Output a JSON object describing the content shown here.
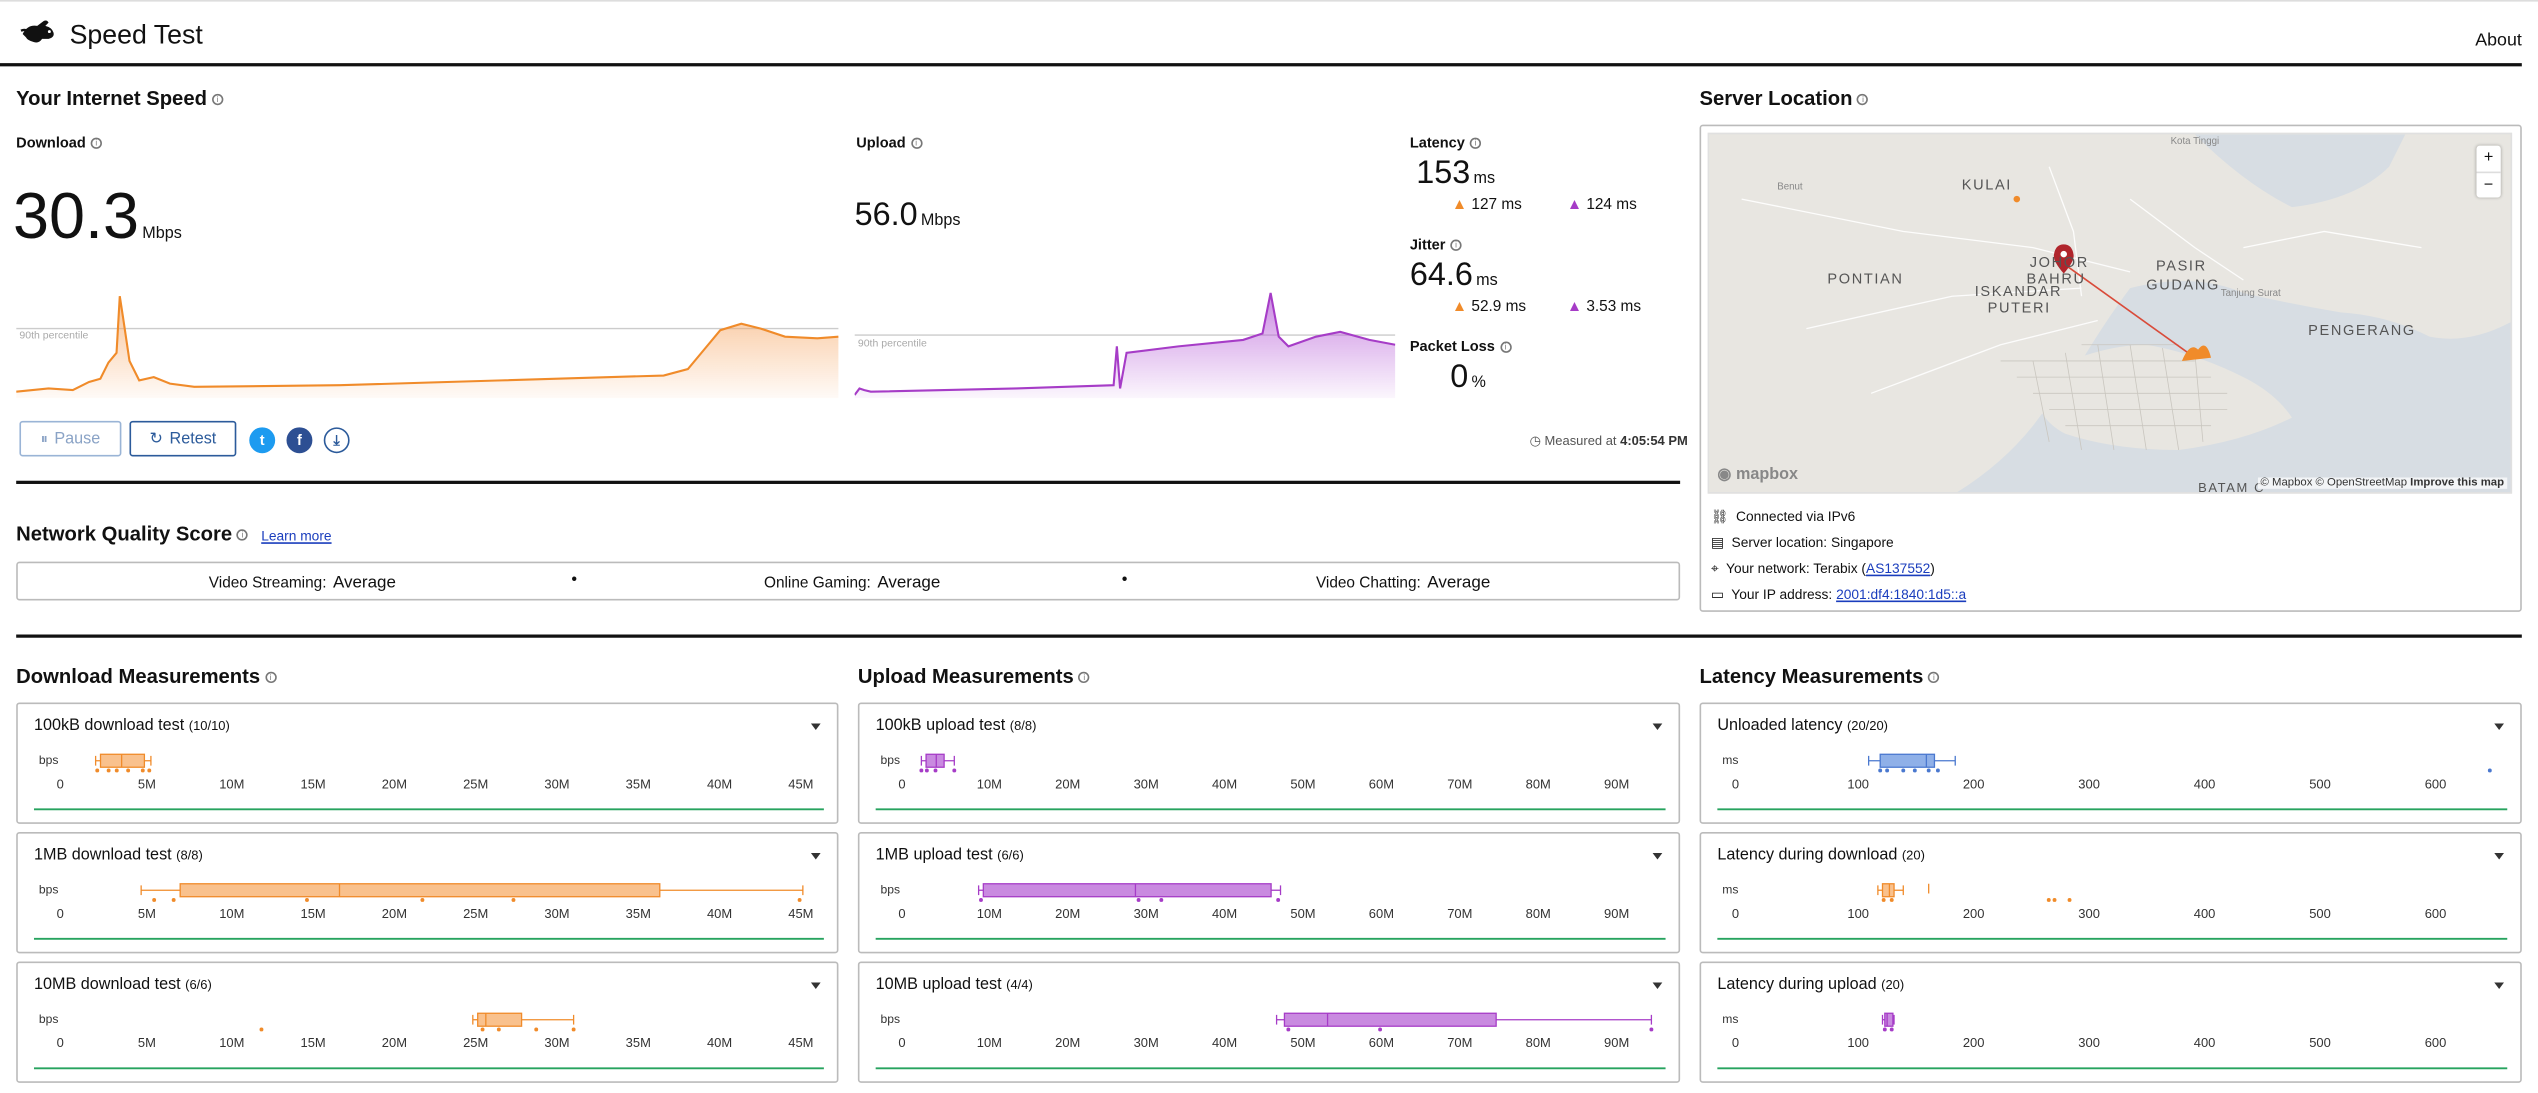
{
  "header": {
    "title": "Speed Test",
    "about_label": "About"
  },
  "speed": {
    "title": "Your Internet Speed",
    "download": {
      "label": "Download",
      "value": "30.3",
      "unit": "Mbps",
      "percentile_label": "90th percentile"
    },
    "upload": {
      "label": "Upload",
      "value": "56.0",
      "unit": "Mbps",
      "percentile_label": "90th percentile"
    },
    "latency": {
      "label": "Latency",
      "value": "153",
      "unit": "ms",
      "down": "127",
      "down_unit": "ms",
      "up": "124",
      "up_unit": "ms"
    },
    "jitter": {
      "label": "Jitter",
      "value": "64.6",
      "unit": "ms",
      "down": "52.9",
      "down_unit": "ms",
      "up": "3.53",
      "up_unit": "ms"
    },
    "packet_loss": {
      "label": "Packet Loss",
      "value": "0",
      "unit": "%"
    },
    "pause_label": "Pause",
    "retest_label": "Retest",
    "measured_prefix": "Measured at",
    "measured_time": "4:05:54 PM"
  },
  "quality": {
    "title": "Network Quality Score",
    "learn_more": "Learn more",
    "items": [
      {
        "label": "Video Streaming:",
        "value": "Average"
      },
      {
        "label": "Online Gaming:",
        "value": "Average"
      },
      {
        "label": "Video Chatting:",
        "value": "Average"
      }
    ],
    "separator": "•"
  },
  "server": {
    "title": "Server Location",
    "map_labels": {
      "kulai": "KULAI",
      "pontian": "PONTIAN",
      "iskandar": "ISKANDAR",
      "puteri": "PUTERI",
      "johor": "JOHOR",
      "bahru": "BAHRU",
      "pasir": "PASIR",
      "gudang": "GUDANG",
      "pengerang": "PENGERANG",
      "batam": "BATAM C",
      "kota": "Kota Tinggi",
      "benut": "Benut",
      "tanjung": "Tanjung Surat"
    },
    "zoom_in": "+",
    "zoom_out": "−",
    "mapbox_label": "mapbox",
    "attribution": "© Mapbox © OpenStreetMap",
    "improve": "Improve this map",
    "connected": "Connected via IPv6",
    "location": "Server location: Singapore",
    "network_prefix": "Your network: Terabix (",
    "network_as": "AS137552",
    "network_suffix": ")",
    "ip_prefix": "Your IP address: ",
    "ip": "2001:df4:1840:1d5::a"
  },
  "colors": {
    "download": "#f08b2a",
    "upload": "#a63cc7",
    "latency": "#4a78cf",
    "baseline": "#27a35f"
  },
  "measurements": {
    "download": {
      "title": "Download Measurements",
      "unit": "bps",
      "ticks": [
        "0",
        "5M",
        "10M",
        "15M",
        "20M",
        "25M",
        "30M",
        "35M",
        "40M",
        "45M"
      ],
      "tests": [
        {
          "name": "100kB download test",
          "count": "(10/10)",
          "min": 1.8,
          "q1": 2.1,
          "median": 3.4,
          "q3": 4.8,
          "max": 5.2,
          "points": [
            1.9,
            2.6,
            3.1,
            3.8,
            4.7,
            5.1
          ]
        },
        {
          "name": "1MB download test",
          "count": "(8/8)",
          "min": 4.6,
          "q1": 7.0,
          "median": 16.8,
          "q3": 36.5,
          "max": 45.3,
          "points": [
            5.4,
            6.6,
            14.8,
            21.9,
            27.5,
            45.1
          ]
        },
        {
          "name": "10MB download test",
          "count": "(6/6)",
          "min": 25.0,
          "q1": 25.3,
          "median": 25.8,
          "q3": 28.0,
          "max": 31.2,
          "points": [
            12.0,
            25.6,
            26.6,
            28.9,
            31.2
          ]
        }
      ]
    },
    "upload": {
      "title": "Upload Measurements",
      "unit": "bps",
      "ticks": [
        "0",
        "10M",
        "20M",
        "30M",
        "40M",
        "50M",
        "60M",
        "70M",
        "80M",
        "90M"
      ],
      "tests": [
        {
          "name": "100kB upload test",
          "count": "(8/8)",
          "min": 1.7,
          "q1": 2.3,
          "median": 3.6,
          "q3": 4.6,
          "max": 5.9,
          "points": [
            1.7,
            2.4,
            3.5,
            5.9
          ]
        },
        {
          "name": "1MB upload test",
          "count": "(6/6)",
          "min": 9.0,
          "q1": 9.6,
          "median": 29.0,
          "q3": 46.3,
          "max": 47.5,
          "points": [
            9.3,
            29.4,
            32.3,
            47.2
          ]
        },
        {
          "name": "10MB upload test",
          "count": "(4/4)",
          "min": 47.0,
          "q1": 48.0,
          "median": 53.5,
          "q3": 75.0,
          "max": 94.8,
          "points": [
            48.5,
            60.2,
            94.8
          ]
        }
      ]
    },
    "latency": {
      "title": "Latency Measurements",
      "unit": "ms",
      "ticks": [
        "0",
        "100",
        "200",
        "300",
        "400",
        "500",
        "600"
      ],
      "tests": [
        {
          "name": "Unloaded latency",
          "count": "(20/20)",
          "min": 110,
          "q1": 120,
          "median": 160,
          "q3": 167,
          "max": 185,
          "points": [
            120,
            126,
            140,
            150,
            162,
            170,
            648
          ],
          "color": "latency"
        },
        {
          "name": "Latency during download",
          "count": "(20)",
          "min": 118,
          "q1": 122,
          "median": 128,
          "q3": 132,
          "max": 140,
          "points": [
            123,
            130,
            266,
            271,
            284
          ],
          "extra_tick": 162,
          "color": "download"
        },
        {
          "name": "Latency during upload",
          "count": "(20)",
          "min": 122,
          "q1": 124,
          "median": 126,
          "q3": 131,
          "max": 132,
          "points": [
            124,
            130
          ],
          "color": "upload"
        }
      ]
    }
  }
}
